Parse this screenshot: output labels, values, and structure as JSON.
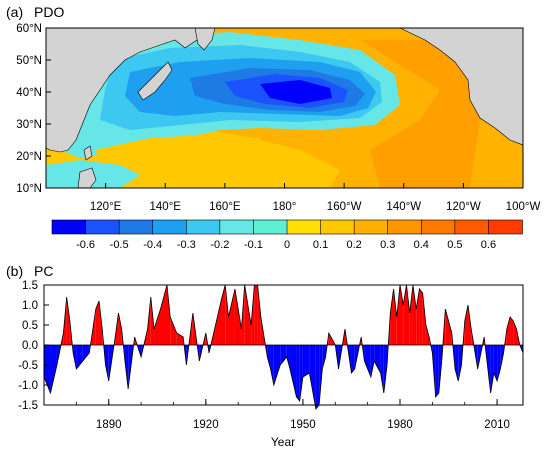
{
  "chart_data": [
    {
      "type": "heatmap",
      "panel_label": "(a)",
      "title": "PDO",
      "y_ticks": [
        "60°N",
        "50°N",
        "40°N",
        "30°N",
        "20°N",
        "10°N"
      ],
      "x_ticks": [
        "120°E",
        "140°E",
        "160°E",
        "180°",
        "160°W",
        "140°W",
        "120°W",
        "100°W"
      ],
      "xlim": [
        100,
        260
      ],
      "ylim": [
        10,
        60
      ],
      "colorbar": {
        "labels": [
          "-0.6",
          "-0.5",
          "-0.4",
          "-0.3",
          "-0.2",
          "-0.1",
          "0",
          "0.1",
          "0.2",
          "0.3",
          "0.4",
          "0.5",
          "0.6"
        ],
        "colors": [
          "#0000ff",
          "#1a53ff",
          "#1e7be6",
          "#1e9ff0",
          "#3cc8f0",
          "#66e6e6",
          "#5ef0d2",
          "#ffde00",
          "#ffc800",
          "#ffaf00",
          "#ff9600",
          "#ff7800",
          "#ff5a00",
          "#ff3c00"
        ]
      },
      "land_color": "#d3d3d3",
      "sea_colors": {
        "warm": "#ffc800",
        "cool": "#3cc8f0",
        "core": "#0000ff"
      }
    },
    {
      "type": "area",
      "panel_label": "(b)",
      "title": "PC",
      "xlabel": "Year",
      "x_ticks": [
        "1890",
        "1920",
        "1950",
        "1980",
        "2010"
      ],
      "y_ticks": [
        "1.5",
        "1.0",
        "0.5",
        "0.0",
        "-0.5",
        "-1.0",
        "-1.5"
      ],
      "xlim": [
        1870,
        2018
      ],
      "ylim": [
        -1.5,
        1.5
      ],
      "positive_color": "#ff0000",
      "negative_color": "#0000ff",
      "x": [
        1870,
        1872,
        1874,
        1876,
        1877,
        1878,
        1879,
        1880,
        1882,
        1884,
        1886,
        1887,
        1888,
        1889,
        1890,
        1892,
        1893,
        1894,
        1895,
        1896,
        1898,
        1900,
        1902,
        1903,
        1904,
        1906,
        1908,
        1909,
        1911,
        1913,
        1914,
        1916,
        1918,
        1920,
        1921,
        1923,
        1925,
        1926,
        1927,
        1929,
        1931,
        1932,
        1934,
        1935,
        1936,
        1937,
        1939,
        1940,
        1941,
        1943,
        1945,
        1946,
        1948,
        1949,
        1950,
        1952,
        1954,
        1955,
        1956,
        1957,
        1958,
        1960,
        1961,
        1963,
        1965,
        1966,
        1968,
        1969,
        1971,
        1972,
        1974,
        1975,
        1976,
        1977,
        1978,
        1979,
        1980,
        1981,
        1982,
        1983,
        1984,
        1985,
        1986,
        1987,
        1988,
        1989,
        1990,
        1991,
        1992,
        1993,
        1994,
        1996,
        1997,
        1998,
        1999,
        2000,
        2001,
        2002,
        2004,
        2006,
        2008,
        2009,
        2010,
        2011,
        2012,
        2013,
        2014,
        2015,
        2016,
        2017,
        2018
      ],
      "y": [
        -0.8,
        -1.2,
        -0.5,
        0.3,
        1.2,
        0.6,
        -0.2,
        -0.6,
        -0.4,
        -0.2,
        0.9,
        1.1,
        0.4,
        -0.5,
        -0.9,
        0.2,
        0.8,
        0.4,
        -0.4,
        -1.1,
        0.2,
        -0.3,
        0.4,
        1.2,
        0.4,
        0.9,
        1.5,
        0.7,
        0.3,
        0.2,
        -0.5,
        0.8,
        -0.4,
        0.3,
        -0.2,
        0.5,
        1.2,
        1.5,
        0.7,
        1.4,
        0.4,
        1.5,
        0.5,
        1.5,
        1.5,
        0.7,
        -0.3,
        -0.6,
        -1.0,
        -0.5,
        -0.3,
        -0.6,
        -1.3,
        -1.4,
        -0.8,
        -0.7,
        -1.6,
        -1.5,
        -0.6,
        -0.3,
        0.3,
        0.0,
        -0.6,
        0.4,
        -0.7,
        -0.6,
        0.2,
        -0.4,
        -0.8,
        -0.4,
        -0.7,
        -1.2,
        -0.5,
        0.8,
        1.4,
        0.7,
        1.5,
        1.0,
        1.5,
        0.8,
        1.5,
        0.9,
        1.4,
        1.3,
        0.5,
        0.2,
        -0.2,
        -1.3,
        -1.2,
        -0.3,
        0.9,
        0.3,
        -0.6,
        -0.9,
        -0.5,
        0.6,
        1.0,
        0.4,
        -0.6,
        0.2,
        -1.2,
        -0.7,
        -0.9,
        -0.6,
        -0.2,
        0.4,
        0.7,
        0.6,
        0.4,
        0.0,
        -0.2
      ]
    }
  ]
}
